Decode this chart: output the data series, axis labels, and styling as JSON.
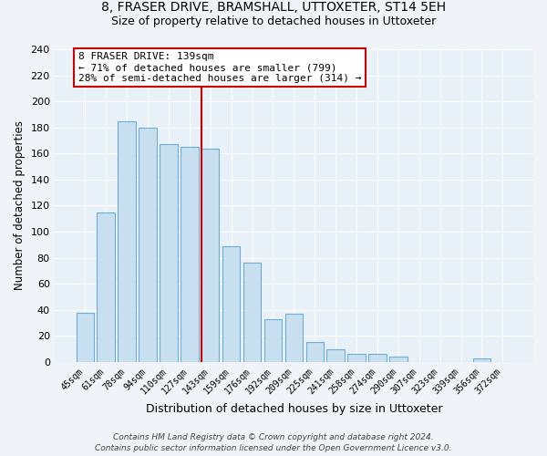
{
  "title1": "8, FRASER DRIVE, BRAMSHALL, UTTOXETER, ST14 5EH",
  "title2": "Size of property relative to detached houses in Uttoxeter",
  "xlabel": "Distribution of detached houses by size in Uttoxeter",
  "ylabel": "Number of detached properties",
  "categories": [
    "45sqm",
    "61sqm",
    "78sqm",
    "94sqm",
    "110sqm",
    "127sqm",
    "143sqm",
    "159sqm",
    "176sqm",
    "192sqm",
    "209sqm",
    "225sqm",
    "241sqm",
    "258sqm",
    "274sqm",
    "290sqm",
    "307sqm",
    "323sqm",
    "339sqm",
    "356sqm",
    "372sqm"
  ],
  "values": [
    38,
    115,
    185,
    180,
    167,
    165,
    164,
    89,
    76,
    33,
    37,
    15,
    10,
    6,
    6,
    4,
    0,
    0,
    0,
    3,
    0
  ],
  "bar_color": "#c8dff0",
  "bar_edge_color": "#6baed6",
  "vline_color": "#cc0000",
  "vline_index": 6,
  "ylim": [
    0,
    240
  ],
  "yticks": [
    0,
    20,
    40,
    60,
    80,
    100,
    120,
    140,
    160,
    180,
    200,
    220,
    240
  ],
  "annotation_title": "8 FRASER DRIVE: 139sqm",
  "annotation_line1": "← 71% of detached houses are smaller (799)",
  "annotation_line2": "28% of semi-detached houses are larger (314) →",
  "annotation_box_color": "#ffffff",
  "annotation_box_edge": "#cc0000",
  "footnote1": "Contains HM Land Registry data © Crown copyright and database right 2024.",
  "footnote2": "Contains public sector information licensed under the Open Government Licence v3.0.",
  "bg_color": "#f0f4f8",
  "plot_bg_color": "#e8f0f8"
}
